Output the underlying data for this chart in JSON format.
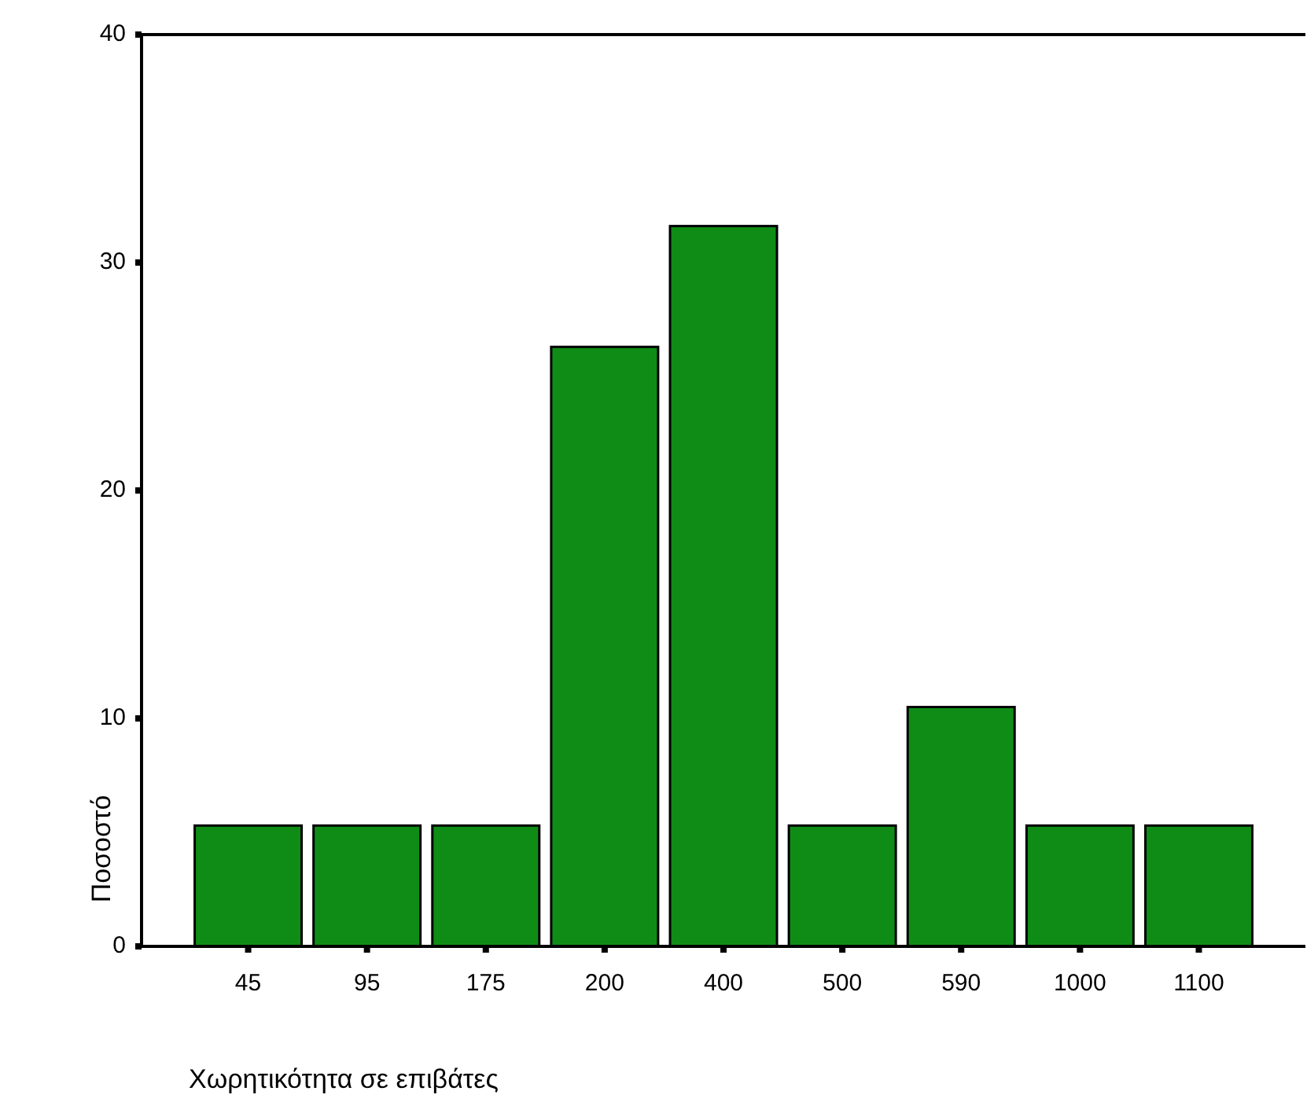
{
  "chart_data": {
    "type": "bar",
    "xlabel": "Χωρητικότητα σε επιβάτες",
    "ylabel": "Ποσοστό",
    "categories": [
      "45",
      "95",
      "175",
      "200",
      "400",
      "500",
      "590",
      "1000",
      "1100"
    ],
    "values": [
      5.3,
      5.3,
      5.3,
      26.3,
      31.6,
      5.3,
      10.5,
      5.3,
      5.3
    ],
    "color": "#0f8c16",
    "ylim": [
      0,
      40
    ],
    "yticks": [
      0,
      10,
      20,
      30,
      40
    ],
    "grid": false
  }
}
